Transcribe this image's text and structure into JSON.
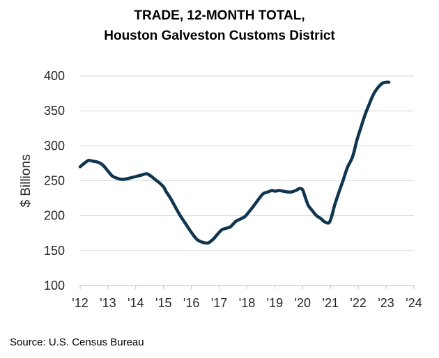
{
  "title_line1": "TRADE, 12-MONTH TOTAL,",
  "title_line2": "Houston Galveston Customs District",
  "source": "Source: U.S. Census Bureau",
  "chart_data": {
    "type": "line",
    "ylabel": "$ Billions",
    "xlabel": "",
    "ylim": [
      100,
      400
    ],
    "xlim": [
      2012,
      2024
    ],
    "yticks": [
      100,
      150,
      200,
      250,
      300,
      350,
      400
    ],
    "xticks": [
      {
        "value": 2012,
        "label": "'12"
      },
      {
        "value": 2013,
        "label": "'13"
      },
      {
        "value": 2014,
        "label": "'14"
      },
      {
        "value": 2015,
        "label": "'15"
      },
      {
        "value": 2016,
        "label": "'16"
      },
      {
        "value": 2017,
        "label": "'17"
      },
      {
        "value": 2018,
        "label": "'18"
      },
      {
        "value": 2019,
        "label": "'19"
      },
      {
        "value": 2020,
        "label": "'20"
      },
      {
        "value": 2021,
        "label": "'21"
      },
      {
        "value": 2022,
        "label": "'22"
      },
      {
        "value": 2023,
        "label": "'23"
      },
      {
        "value": 2024,
        "label": "'24"
      }
    ],
    "grid": true,
    "line_color": "#0f3550",
    "series": [
      {
        "name": "Trade, 12-month total",
        "x": [
          2012.0,
          2012.15,
          2012.3,
          2012.45,
          2012.6,
          2012.8,
          2013.0,
          2013.15,
          2013.3,
          2013.5,
          2013.7,
          2013.9,
          2014.0,
          2014.2,
          2014.4,
          2014.6,
          2014.75,
          2014.85,
          2015.0,
          2015.1,
          2015.25,
          2015.4,
          2015.6,
          2015.8,
          2016.0,
          2016.2,
          2016.4,
          2016.6,
          2016.8,
          2016.95,
          2017.1,
          2017.25,
          2017.4,
          2017.5,
          2017.6,
          2017.75,
          2017.9,
          2018.0,
          2018.1,
          2018.2,
          2018.35,
          2018.5,
          2018.6,
          2018.75,
          2018.9,
          2019.0,
          2019.15,
          2019.3,
          2019.45,
          2019.6,
          2019.75,
          2019.9,
          2020.0,
          2020.08,
          2020.2,
          2020.35,
          2020.5,
          2020.65,
          2020.8,
          2020.95,
          2021.05,
          2021.15,
          2021.3,
          2021.45,
          2021.6,
          2021.8,
          2021.95,
          2022.1,
          2022.25,
          2022.4,
          2022.55,
          2022.7,
          2022.85,
          2023.0,
          2023.1
        ],
        "values": [
          270,
          275,
          279,
          278,
          277,
          273,
          264,
          257,
          254,
          252,
          253,
          255,
          256,
          258,
          260,
          255,
          250,
          247,
          241,
          234,
          225,
          214,
          200,
          188,
          176,
          166,
          162,
          161,
          167,
          174,
          180,
          182,
          184,
          188,
          192,
          195,
          198,
          202,
          207,
          212,
          220,
          228,
          232,
          234,
          236,
          235,
          236,
          235,
          234,
          234,
          236,
          239,
          237,
          228,
          215,
          207,
          200,
          196,
          191,
          190,
          200,
          215,
          233,
          250,
          268,
          285,
          308,
          327,
          345,
          360,
          374,
          383,
          389,
          391,
          391
        ]
      }
    ]
  }
}
